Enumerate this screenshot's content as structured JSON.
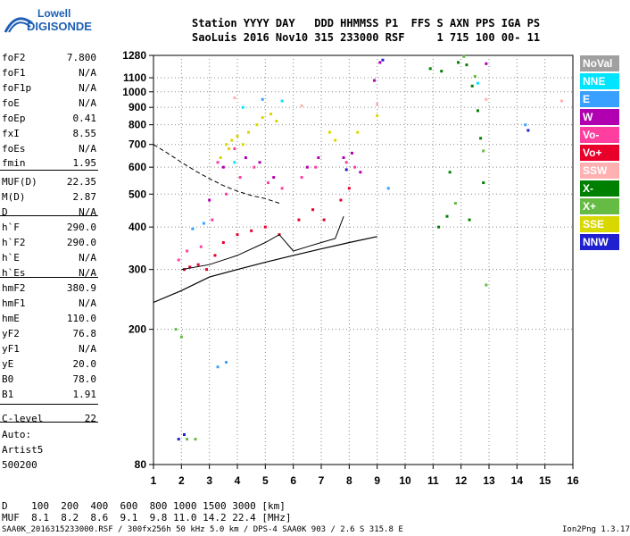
{
  "logo": {
    "line1": "Lowell",
    "line2": "DIGISONDE",
    "color": "#1e5fb4"
  },
  "header": {
    "row1": "Station YYYY DAY   DDD HHMMSS P1  FFS S AXN PPS IGA PS",
    "row2": "SaoLuis 2016 Nov10 315 233000 RSF     1 715 100 00- 11"
  },
  "params": [
    {
      "name": "foF2",
      "value": "7.800"
    },
    {
      "name": "foF1",
      "value": "N/A"
    },
    {
      "name": "foF1p",
      "value": "N/A"
    },
    {
      "name": "foE",
      "value": "N/A"
    },
    {
      "name": "foEp",
      "value": "0.41"
    },
    {
      "name": "fxI",
      "value": "8.55"
    },
    {
      "name": "foEs",
      "value": "N/A"
    },
    {
      "name": "fmin",
      "value": "1.95"
    },
    {
      "name": "MUF(D)",
      "value": "22.35"
    },
    {
      "name": "M(D)",
      "value": "2.87"
    },
    {
      "name": "D",
      "value": "N/A"
    },
    {
      "name": "h`F",
      "value": "290.0"
    },
    {
      "name": "h`F2",
      "value": "290.0"
    },
    {
      "name": "h`E",
      "value": "N/A"
    },
    {
      "name": "h`Es",
      "value": "N/A"
    },
    {
      "name": "hmF2",
      "value": "380.9"
    },
    {
      "name": "hmF1",
      "value": "N/A"
    },
    {
      "name": "hmE",
      "value": "110.0"
    },
    {
      "name": "yF2",
      "value": "76.8"
    },
    {
      "name": "yF1",
      "value": "N/A"
    },
    {
      "name": "yE",
      "value": "20.0"
    },
    {
      "name": "B0",
      "value": "78.0"
    },
    {
      "name": "B1",
      "value": "1.91"
    },
    {
      "name": "C-level",
      "value": "22"
    }
  ],
  "auto": {
    "line1": "Auto:",
    "line2": "Artist5",
    "line3": "500200"
  },
  "legend": [
    {
      "label": "NoVal",
      "color": "#a0a0a0"
    },
    {
      "label": "NNE",
      "color": "#00e5ff"
    },
    {
      "label": "E",
      "color": "#3aa0ff"
    },
    {
      "label": "W",
      "color": "#b000b0"
    },
    {
      "label": "Vo-",
      "color": "#ff3fa0"
    },
    {
      "label": "Vo+",
      "color": "#e8002a"
    },
    {
      "label": "SSW",
      "color": "#ffb0b0"
    },
    {
      "label": "X-",
      "color": "#008000"
    },
    {
      "label": "X+",
      "color": "#66bb44"
    },
    {
      "label": "SSE",
      "color": "#d8d800"
    },
    {
      "label": "NNW",
      "color": "#2020d0"
    }
  ],
  "footer": {
    "d_row": "D    100  200  400  600  800 1000 1500 3000 [km]",
    "muf_row": "MUF  8.1  8.2  8.6  9.1  9.8 11.0 14.2 22.4 [MHz]",
    "file": "SAA0K_2016315233000.RSF / 300fx256h 50 kHz 5.0 km / DPS-4 SAA0K 903 / 2.6 S 315.8 E",
    "version": "Ion2Png 1.3.17"
  },
  "chart_data": {
    "type": "scatter",
    "title": "",
    "xlabel": "",
    "ylabel": "",
    "xlim": [
      1,
      16
    ],
    "ylim": [
      80,
      1280
    ],
    "y_scale": "log",
    "x_ticks": [
      1,
      2,
      3,
      4,
      5,
      6,
      7,
      8,
      9,
      10,
      11,
      12,
      13,
      14,
      15,
      16
    ],
    "y_ticks": [
      80,
      200,
      300,
      400,
      500,
      600,
      700,
      800,
      900,
      1000,
      1100,
      1280
    ],
    "grid": true,
    "legend_placement": "right",
    "series": [
      {
        "color": "#e8002a",
        "points": [
          [
            2.1,
            300
          ],
          [
            2.3,
            305
          ],
          [
            2.6,
            310
          ],
          [
            2.9,
            300
          ],
          [
            3.2,
            330
          ],
          [
            3.5,
            360
          ],
          [
            4.0,
            380
          ],
          [
            4.5,
            390
          ],
          [
            5.0,
            400
          ],
          [
            5.5,
            380
          ],
          [
            6.2,
            420
          ],
          [
            6.7,
            450
          ],
          [
            7.1,
            420
          ],
          [
            7.7,
            480
          ],
          [
            8.0,
            520
          ]
        ]
      },
      {
        "color": "#ff3fa0",
        "points": [
          [
            1.9,
            320
          ],
          [
            2.2,
            340
          ],
          [
            2.7,
            350
          ],
          [
            3.1,
            420
          ],
          [
            3.6,
            500
          ],
          [
            4.1,
            560
          ],
          [
            4.6,
            600
          ],
          [
            5.1,
            540
          ],
          [
            5.6,
            520
          ],
          [
            6.3,
            560
          ],
          [
            6.8,
            600
          ],
          [
            7.9,
            620
          ],
          [
            8.2,
            600
          ],
          [
            3.3,
            620
          ],
          [
            3.9,
            680
          ]
        ]
      },
      {
        "color": "#d8d800",
        "points": [
          [
            3.4,
            640
          ],
          [
            3.6,
            700
          ],
          [
            3.8,
            720
          ],
          [
            4.0,
            740
          ],
          [
            4.2,
            700
          ],
          [
            4.4,
            760
          ],
          [
            4.7,
            800
          ],
          [
            5.2,
            860
          ],
          [
            5.4,
            820
          ],
          [
            7.3,
            760
          ],
          [
            7.5,
            720
          ],
          [
            8.3,
            760
          ],
          [
            9.0,
            850
          ],
          [
            3.7,
            680
          ],
          [
            4.9,
            840
          ]
        ]
      },
      {
        "color": "#b000b0",
        "points": [
          [
            3.0,
            480
          ],
          [
            3.5,
            600
          ],
          [
            4.3,
            640
          ],
          [
            4.8,
            620
          ],
          [
            5.3,
            560
          ],
          [
            6.5,
            600
          ],
          [
            6.9,
            640
          ],
          [
            7.8,
            640
          ],
          [
            8.1,
            660
          ],
          [
            8.4,
            580
          ],
          [
            8.9,
            1080
          ],
          [
            9.1,
            1220
          ],
          [
            12.9,
            1210
          ]
        ]
      },
      {
        "color": "#008000",
        "points": [
          [
            10.9,
            1170
          ],
          [
            11.3,
            1150
          ],
          [
            11.6,
            580
          ],
          [
            11.9,
            1220
          ],
          [
            12.2,
            1200
          ],
          [
            12.4,
            1040
          ],
          [
            12.6,
            880
          ],
          [
            12.3,
            420
          ],
          [
            12.7,
            730
          ],
          [
            12.8,
            540
          ],
          [
            11.2,
            400
          ],
          [
            11.5,
            430
          ]
        ]
      },
      {
        "color": "#66bb44",
        "points": [
          [
            1.8,
            200
          ],
          [
            2.0,
            190
          ],
          [
            2.2,
            95
          ],
          [
            2.5,
            95
          ],
          [
            12.1,
            1270
          ],
          [
            12.5,
            1110
          ],
          [
            12.8,
            670
          ],
          [
            12.9,
            270
          ],
          [
            11.8,
            470
          ]
        ]
      },
      {
        "color": "#3aa0ff",
        "points": [
          [
            2.4,
            395
          ],
          [
            2.8,
            410
          ],
          [
            3.3,
            155
          ],
          [
            3.6,
            160
          ],
          [
            4.9,
            950
          ],
          [
            9.4,
            520
          ],
          [
            14.3,
            800
          ]
        ]
      },
      {
        "color": "#2020d0",
        "points": [
          [
            1.9,
            95
          ],
          [
            2.1,
            98
          ],
          [
            7.9,
            590
          ],
          [
            9.2,
            1240
          ],
          [
            14.4,
            770
          ]
        ]
      },
      {
        "color": "#00e5ff",
        "points": [
          [
            4.2,
            900
          ],
          [
            5.6,
            940
          ],
          [
            3.9,
            620
          ],
          [
            12.6,
            1060
          ]
        ]
      },
      {
        "color": "#ffb0b0",
        "points": [
          [
            3.9,
            960
          ],
          [
            6.3,
            910
          ],
          [
            9.0,
            920
          ],
          [
            12.9,
            950
          ],
          [
            15.6,
            940
          ]
        ]
      }
    ],
    "profile_curve": [
      [
        1,
        240
      ],
      [
        2,
        260
      ],
      [
        3,
        285
      ],
      [
        4,
        300
      ],
      [
        5,
        315
      ],
      [
        6,
        330
      ],
      [
        7,
        345
      ],
      [
        8,
        360
      ],
      [
        9,
        375
      ]
    ],
    "dashed_curve": [
      [
        1,
        700
      ],
      [
        1.5,
        660
      ],
      [
        2,
        620
      ],
      [
        2.5,
        585
      ],
      [
        3,
        555
      ],
      [
        3.5,
        530
      ],
      [
        4,
        510
      ],
      [
        4.5,
        495
      ],
      [
        5,
        485
      ],
      [
        5.5,
        470
      ]
    ],
    "trace_curve": [
      [
        2,
        300
      ],
      [
        3,
        310
      ],
      [
        4,
        330
      ],
      [
        5,
        360
      ],
      [
        5.5,
        380
      ],
      [
        6,
        340
      ],
      [
        6.5,
        350
      ],
      [
        7,
        360
      ],
      [
        7.5,
        370
      ],
      [
        7.8,
        430
      ]
    ]
  }
}
